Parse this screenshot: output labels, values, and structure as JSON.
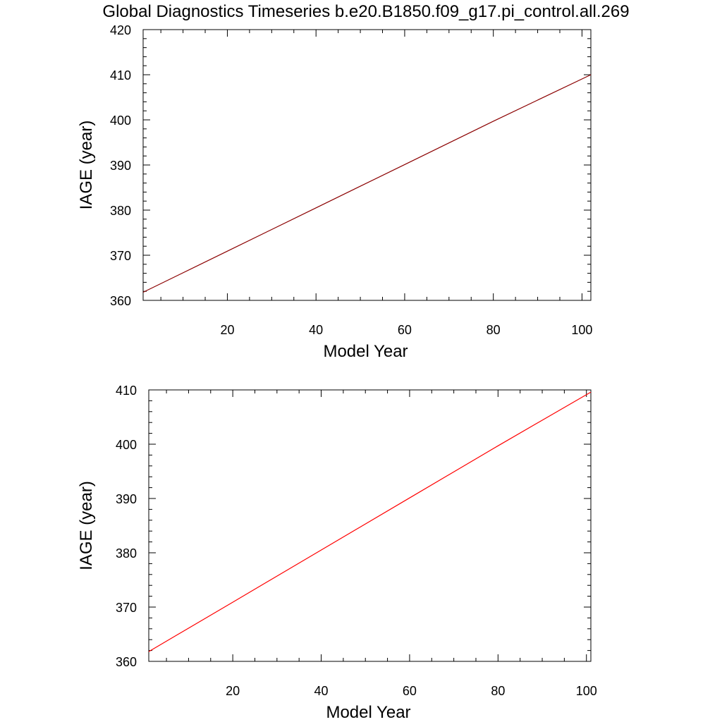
{
  "title": "Global Diagnostics Timeseries b.e20.B1850.f09_g17.pi_control.all.269",
  "chart_data": [
    {
      "type": "line",
      "xlabel": "Model Year",
      "ylabel": "IAGE (year)",
      "xlim": [
        1,
        102
      ],
      "ylim": [
        360,
        420
      ],
      "xticks": [
        20,
        40,
        60,
        80,
        100
      ],
      "yticks": [
        360,
        370,
        380,
        390,
        400,
        410,
        420
      ],
      "grid": false,
      "series": [
        {
          "color": "#8B0000",
          "x": [
            1,
            20,
            40,
            60,
            80,
            102
          ],
          "y": [
            361.8,
            370.9,
            380.5,
            390.1,
            399.7,
            410.0
          ]
        }
      ]
    },
    {
      "type": "line",
      "xlabel": "Model Year",
      "ylabel": "IAGE (year)",
      "xlim": [
        1,
        101
      ],
      "ylim": [
        360,
        410
      ],
      "xticks": [
        20,
        40,
        60,
        80,
        100
      ],
      "yticks": [
        360,
        370,
        380,
        390,
        400,
        410
      ],
      "grid": false,
      "series": [
        {
          "color": "#FF0000",
          "x": [
            1,
            20,
            40,
            60,
            80,
            101
          ],
          "y": [
            361.8,
            370.9,
            380.5,
            390.1,
            399.7,
            409.6
          ]
        }
      ]
    }
  ]
}
